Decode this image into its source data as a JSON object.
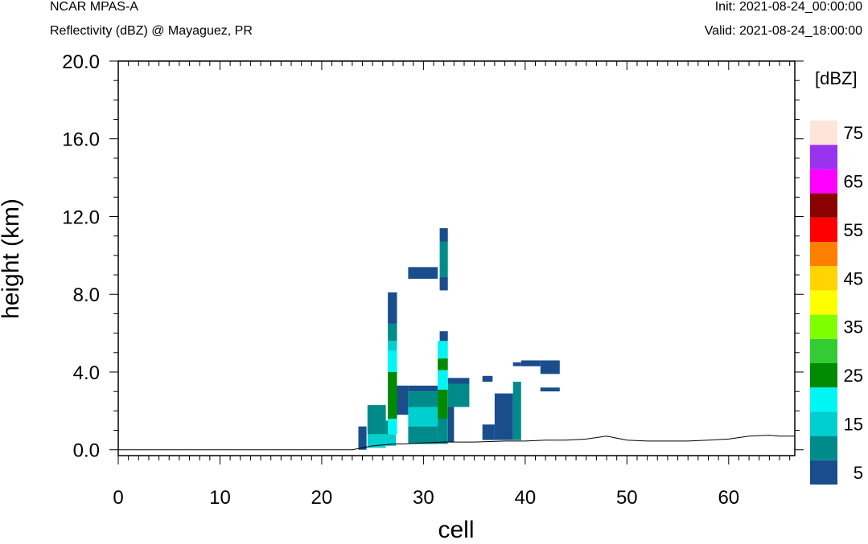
{
  "header": {
    "title": "NCAR MPAS-A",
    "subtitle": "Reflectivity (dBZ) @ Mayaguez, PR",
    "init": "Init: 2021-08-24_00:00:00",
    "valid": "Valid: 2021-08-24_18:00:00"
  },
  "chart_data": {
    "type": "heatmap",
    "title": "Reflectivity (dBZ) @ Mayaguez, PR",
    "xlabel": "cell",
    "ylabel": "height (km)",
    "xlim": [
      0,
      66.5
    ],
    "ylim": [
      -0.3,
      20.0
    ],
    "xticks": [
      0,
      10,
      20,
      30,
      40,
      50,
      60
    ],
    "xticklabels": [
      "0",
      "10",
      "20",
      "30",
      "40",
      "50",
      "60"
    ],
    "yticks": [
      0,
      4,
      8,
      12,
      16,
      20
    ],
    "yticklabels": [
      "0.0",
      "4.0",
      "8.0",
      "12.0",
      "16.0",
      "20.0"
    ],
    "colorbar": {
      "units": "[dBZ]",
      "levels": [
        5,
        10,
        15,
        20,
        25,
        30,
        35,
        40,
        45,
        50,
        55,
        60,
        65,
        70,
        75
      ],
      "labels": [
        "5",
        "15",
        "25",
        "35",
        "45",
        "55",
        "65",
        "75"
      ],
      "colors": [
        "#1a4d8c",
        "#008b8b",
        "#00cfcf",
        "#00f5f5",
        "#008a00",
        "#33cc33",
        "#80ff00",
        "#ffff00",
        "#ffd400",
        "#ff8000",
        "#ff0000",
        "#8b0000",
        "#ff00ff",
        "#9933ee",
        "#ffe4dc"
      ]
    },
    "terrain": [
      [
        0,
        0.0
      ],
      [
        23,
        0.0
      ],
      [
        24,
        0.1
      ],
      [
        25,
        0.2
      ],
      [
        26,
        0.25
      ],
      [
        27,
        0.3
      ],
      [
        28,
        0.3
      ],
      [
        30,
        0.35
      ],
      [
        32,
        0.4
      ],
      [
        35,
        0.4
      ],
      [
        38,
        0.45
      ],
      [
        40,
        0.45
      ],
      [
        42,
        0.5
      ],
      [
        44,
        0.5
      ],
      [
        46,
        0.55
      ],
      [
        48,
        0.7
      ],
      [
        49,
        0.6
      ],
      [
        50,
        0.5
      ],
      [
        52,
        0.45
      ],
      [
        54,
        0.45
      ],
      [
        56,
        0.45
      ],
      [
        58,
        0.5
      ],
      [
        60,
        0.55
      ],
      [
        62,
        0.7
      ],
      [
        64,
        0.75
      ],
      [
        65,
        0.7
      ],
      [
        66.5,
        0.7
      ]
    ],
    "cells": [
      {
        "x0": 23.6,
        "x1": 24.4,
        "y0": 0.0,
        "y1": 1.2,
        "dbz": 5
      },
      {
        "x0": 24.5,
        "x1": 26.3,
        "y0": 0.8,
        "y1": 2.3,
        "dbz": 10
      },
      {
        "x0": 24.5,
        "x1": 26.3,
        "y0": 0.1,
        "y1": 0.8,
        "dbz": 15
      },
      {
        "x0": 26.3,
        "x1": 27.3,
        "y0": 0.2,
        "y1": 0.8,
        "dbz": 15
      },
      {
        "x0": 26.3,
        "x1": 26.7,
        "y0": 0.8,
        "y1": 1.5,
        "dbz": 10
      },
      {
        "x0": 26.5,
        "x1": 27.4,
        "y0": 0.8,
        "y1": 1.6,
        "dbz": 20
      },
      {
        "x0": 26.5,
        "x1": 27.4,
        "y0": 1.6,
        "y1": 4.0,
        "dbz": 25
      },
      {
        "x0": 26.5,
        "x1": 27.4,
        "y0": 4.0,
        "y1": 5.1,
        "dbz": 20
      },
      {
        "x0": 26.5,
        "x1": 27.4,
        "y0": 5.1,
        "y1": 5.6,
        "dbz": 15
      },
      {
        "x0": 26.5,
        "x1": 27.4,
        "y0": 5.6,
        "y1": 6.5,
        "dbz": 10
      },
      {
        "x0": 26.5,
        "x1": 27.4,
        "y0": 6.5,
        "y1": 8.1,
        "dbz": 5
      },
      {
        "x0": 27.4,
        "x1": 28.5,
        "y0": 1.8,
        "y1": 3.3,
        "dbz": 5
      },
      {
        "x0": 28.5,
        "x1": 31.4,
        "y0": 3.0,
        "y1": 3.3,
        "dbz": 5
      },
      {
        "x0": 28.5,
        "x1": 31.4,
        "y0": 2.2,
        "y1": 3.0,
        "dbz": 10
      },
      {
        "x0": 28.5,
        "x1": 31.4,
        "y0": 1.2,
        "y1": 2.2,
        "dbz": 15
      },
      {
        "x0": 28.5,
        "x1": 31.4,
        "y0": 0.3,
        "y1": 1.2,
        "dbz": 10
      },
      {
        "x0": 28.5,
        "x1": 31.4,
        "y0": 8.8,
        "y1": 9.4,
        "dbz": 5
      },
      {
        "x0": 31.4,
        "x1": 32.4,
        "y0": 0.3,
        "y1": 1.6,
        "dbz": 10
      },
      {
        "x0": 31.4,
        "x1": 32.4,
        "y0": 1.6,
        "y1": 3.1,
        "dbz": 25
      },
      {
        "x0": 31.4,
        "x1": 32.4,
        "y0": 3.1,
        "y1": 4.1,
        "dbz": 20
      },
      {
        "x0": 31.4,
        "x1": 32.4,
        "y0": 4.1,
        "y1": 4.7,
        "dbz": 25
      },
      {
        "x0": 31.4,
        "x1": 32.4,
        "y0": 4.7,
        "y1": 5.6,
        "dbz": 20
      },
      {
        "x0": 31.6,
        "x1": 32.4,
        "y0": 5.6,
        "y1": 6.1,
        "dbz": 5
      },
      {
        "x0": 31.6,
        "x1": 32.4,
        "y0": 8.2,
        "y1": 8.9,
        "dbz": 5
      },
      {
        "x0": 31.6,
        "x1": 32.4,
        "y0": 8.9,
        "y1": 10.7,
        "dbz": 10
      },
      {
        "x0": 31.6,
        "x1": 32.4,
        "y0": 10.7,
        "y1": 11.4,
        "dbz": 5
      },
      {
        "x0": 32.4,
        "x1": 34.5,
        "y0": 3.4,
        "y1": 3.7,
        "dbz": 5
      },
      {
        "x0": 32.4,
        "x1": 34.5,
        "y0": 2.2,
        "y1": 3.4,
        "dbz": 10
      },
      {
        "x0": 32.4,
        "x1": 33.0,
        "y0": 0.4,
        "y1": 2.2,
        "dbz": 5
      },
      {
        "x0": 35.8,
        "x1": 36.8,
        "y0": 3.5,
        "y1": 3.8,
        "dbz": 5
      },
      {
        "x0": 35.8,
        "x1": 37.0,
        "y0": 0.5,
        "y1": 1.3,
        "dbz": 5
      },
      {
        "x0": 37.0,
        "x1": 38.8,
        "y0": 0.5,
        "y1": 2.9,
        "dbz": 5
      },
      {
        "x0": 38.8,
        "x1": 39.6,
        "y0": 0.5,
        "y1": 3.5,
        "dbz": 10
      },
      {
        "x0": 38.8,
        "x1": 39.6,
        "y0": 4.3,
        "y1": 4.5,
        "dbz": 5
      },
      {
        "x0": 39.6,
        "x1": 41.5,
        "y0": 4.3,
        "y1": 4.6,
        "dbz": 5
      },
      {
        "x0": 41.5,
        "x1": 43.4,
        "y0": 3.9,
        "y1": 4.6,
        "dbz": 5
      },
      {
        "x0": 41.5,
        "x1": 43.4,
        "y0": 3.0,
        "y1": 3.2,
        "dbz": 5
      }
    ]
  }
}
